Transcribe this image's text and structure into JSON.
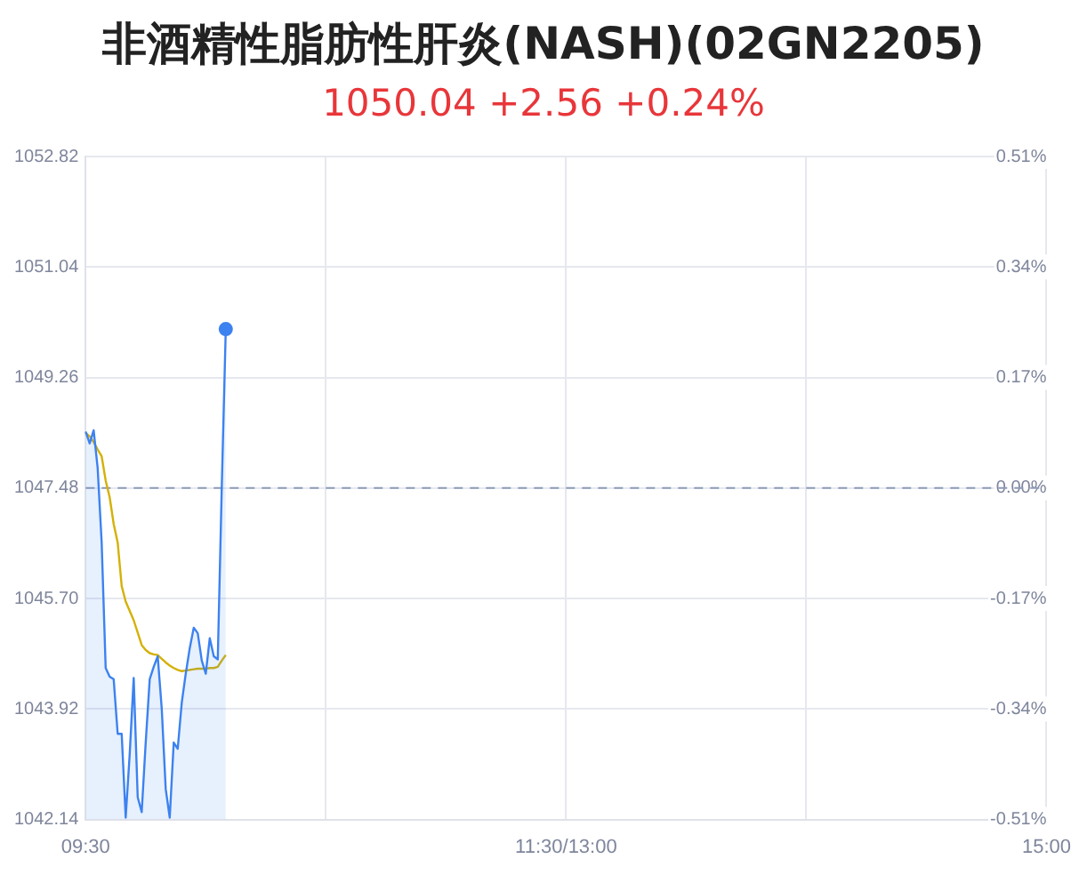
{
  "chart_data": {
    "type": "line",
    "title": "非酒精性脂肪性肝炎(NASH)(02GN2205)",
    "subtitle": "1050.04 +2.56 +0.24%",
    "categories": [
      "09:30",
      null,
      null,
      null,
      null,
      null,
      null,
      null,
      null,
      null,
      null,
      null,
      null,
      null,
      null,
      null,
      null,
      null,
      null,
      null,
      null,
      null,
      null,
      null,
      null,
      null,
      null,
      null,
      null,
      null,
      null,
      null,
      null,
      null,
      null,
      null,
      null,
      null,
      null,
      null,
      null,
      null,
      null,
      null,
      null,
      null,
      null,
      null,
      null,
      null,
      null,
      null,
      null,
      null,
      null,
      null,
      null,
      null,
      null,
      null,
      null,
      null,
      null,
      null,
      null,
      null,
      null,
      null,
      null,
      null,
      null,
      null,
      null,
      null,
      null,
      null,
      null,
      null,
      null,
      null,
      null,
      null,
      null,
      null,
      null,
      null,
      null,
      null,
      null,
      null,
      null,
      null,
      null,
      null,
      null,
      null,
      null,
      null,
      null,
      null,
      null,
      null,
      null,
      null,
      null,
      null,
      null,
      null,
      null,
      null,
      null,
      null,
      null,
      null,
      null,
      null,
      null,
      null,
      null,
      null,
      "11:30/13:00",
      null,
      null,
      null,
      null,
      null,
      null,
      null,
      null,
      null,
      null,
      null,
      null,
      null,
      null,
      null,
      null,
      null,
      null,
      null,
      null,
      null,
      null,
      null,
      null,
      null,
      null,
      null,
      null,
      null,
      null,
      null,
      null,
      null,
      null,
      null,
      null,
      null,
      null,
      null,
      null,
      null,
      null,
      null,
      null,
      null,
      null,
      null,
      null,
      null,
      null,
      null,
      null,
      null,
      null,
      null,
      null,
      null,
      null,
      null,
      null,
      null,
      null,
      null,
      null,
      null,
      null,
      null,
      null,
      null,
      null,
      null,
      null,
      null,
      null,
      null,
      null,
      null,
      null,
      null,
      null,
      null,
      null,
      null,
      null,
      null,
      null,
      null,
      null,
      null,
      null,
      null,
      null,
      null,
      null,
      null,
      null,
      null,
      null,
      null,
      null,
      null,
      null,
      null,
      null,
      null,
      null,
      null,
      null,
      null,
      null,
      null,
      null,
      null,
      null,
      null,
      null,
      null,
      null,
      null,
      "15:00"
    ],
    "ylim": [
      1042.14,
      1052.82
    ],
    "yticks": [
      {
        "value": 1042.14,
        "label": "1042.14"
      },
      {
        "value": 1043.92,
        "label": "1043.92"
      },
      {
        "value": 1045.7,
        "label": "1045.70"
      },
      {
        "value": 1047.48,
        "label": "1047.48"
      },
      {
        "value": 1049.26,
        "label": "1049.26"
      },
      {
        "value": 1051.04,
        "label": "1051.04"
      },
      {
        "value": 1052.82,
        "label": "1052.82"
      }
    ],
    "y2lim": [
      -0.51,
      0.51
    ],
    "y2ticks": [
      {
        "value": -0.51,
        "label": "-0.51%"
      },
      {
        "value": -0.34,
        "label": "-0.34%"
      },
      {
        "value": -0.17,
        "label": "-0.17%"
      },
      {
        "value": 0,
        "label": "0.00%"
      },
      {
        "value": 0.17,
        "label": "0.17%"
      },
      {
        "value": 0.34,
        "label": "0.34%"
      },
      {
        "value": 0.51,
        "label": "0.51%"
      }
    ],
    "grid": true,
    "legend": false,
    "ref_lines": [
      {
        "axis": "y",
        "value": 1047.48,
        "color": "#8e9ab8",
        "line_style": "dashed"
      }
    ],
    "series": [
      {
        "type": "area",
        "color": "#3c82f0",
        "values": [
          1048.39,
          1048.2,
          1048.41,
          1047.8,
          1046.6,
          1044.58,
          1044.44,
          1044.4,
          1043.52,
          1043.52,
          1042.17,
          1043.19,
          1044.42,
          1042.5,
          1042.26,
          1043.38,
          1044.4,
          1044.6,
          1044.77,
          1043.93,
          1042.63,
          1042.17,
          1043.38,
          1043.28,
          1044.02,
          1044.49,
          1044.9,
          1045.23,
          1045.14,
          1044.7,
          1044.49,
          1045.06,
          1044.77,
          1044.72,
          1047.5,
          1050.04,
          null,
          null,
          null,
          null,
          null,
          null,
          null,
          null,
          null,
          null,
          null,
          null,
          null,
          null,
          null,
          null,
          null,
          null,
          null,
          null,
          null,
          null,
          null,
          null,
          null,
          null,
          null,
          null,
          null,
          null,
          null,
          null,
          null,
          null,
          null,
          null,
          null,
          null,
          null,
          null,
          null,
          null,
          null,
          null,
          null,
          null,
          null,
          null,
          null,
          null,
          null,
          null,
          null,
          null,
          null,
          null,
          null,
          null,
          null,
          null,
          null,
          null,
          null,
          null,
          null,
          null,
          null,
          null,
          null,
          null,
          null,
          null,
          null,
          null,
          null,
          null,
          null,
          null,
          null,
          null,
          null,
          null,
          null,
          null,
          null,
          null,
          null,
          null,
          null,
          null,
          null,
          null,
          null,
          null,
          null,
          null,
          null,
          null,
          null,
          null,
          null,
          null,
          null,
          null,
          null,
          null,
          null,
          null,
          null,
          null,
          null,
          null,
          null,
          null,
          null,
          null,
          null,
          null,
          null,
          null,
          null,
          null,
          null,
          null,
          null,
          null,
          null,
          null,
          null,
          null,
          null,
          null,
          null,
          null,
          null,
          null,
          null,
          null,
          null,
          null,
          null,
          null,
          null,
          null,
          null,
          null,
          null,
          null,
          null,
          null,
          null,
          null,
          null,
          null,
          null,
          null,
          null,
          null,
          null,
          null,
          null,
          null,
          null,
          null,
          null,
          null,
          null,
          null,
          null,
          null,
          null,
          null,
          null,
          null,
          null,
          null,
          null,
          null,
          null,
          null,
          null,
          null,
          null,
          null,
          null,
          null,
          null,
          null,
          null,
          null,
          null,
          null,
          null,
          null,
          null,
          null,
          null,
          null,
          null,
          null,
          null,
          null,
          null,
          null,
          null
        ]
      },
      {
        "type": "line",
        "color": "#d4b106",
        "values": [
          1048.37,
          1048.31,
          1048.22,
          1048.1,
          1047.99,
          1047.6,
          1047.33,
          1046.9,
          1046.6,
          1045.9,
          1045.65,
          1045.5,
          1045.35,
          1045.15,
          1044.95,
          1044.87,
          1044.82,
          1044.8,
          1044.79,
          1044.73,
          1044.67,
          1044.62,
          1044.58,
          1044.55,
          1044.53,
          1044.54,
          1044.55,
          1044.56,
          1044.57,
          1044.57,
          1044.57,
          1044.58,
          1044.58,
          1044.6,
          1044.7,
          1044.79,
          null,
          null,
          null,
          null,
          null,
          null,
          null,
          null,
          null,
          null,
          null,
          null,
          null,
          null,
          null,
          null,
          null,
          null,
          null,
          null,
          null,
          null,
          null,
          null,
          null,
          null,
          null,
          null,
          null,
          null,
          null,
          null,
          null,
          null,
          null,
          null,
          null,
          null,
          null,
          null,
          null,
          null,
          null,
          null,
          null,
          null,
          null,
          null,
          null,
          null,
          null,
          null,
          null,
          null,
          null,
          null,
          null,
          null,
          null,
          null,
          null,
          null,
          null,
          null,
          null,
          null,
          null,
          null,
          null,
          null,
          null,
          null,
          null,
          null,
          null,
          null,
          null,
          null,
          null,
          null,
          null,
          null,
          null,
          null,
          null,
          null,
          null,
          null,
          null,
          null,
          null,
          null,
          null,
          null,
          null,
          null,
          null,
          null,
          null,
          null,
          null,
          null,
          null,
          null,
          null,
          null,
          null,
          null,
          null,
          null,
          null,
          null,
          null,
          null,
          null,
          null,
          null,
          null,
          null,
          null,
          null,
          null,
          null,
          null,
          null,
          null,
          null,
          null,
          null,
          null,
          null,
          null,
          null,
          null,
          null,
          null,
          null,
          null,
          null,
          null,
          null,
          null,
          null,
          null,
          null,
          null,
          null,
          null,
          null,
          null,
          null,
          null,
          null,
          null,
          null,
          null,
          null,
          null,
          null,
          null,
          null,
          null,
          null,
          null,
          null,
          null,
          null,
          null,
          null,
          null,
          null,
          null,
          null,
          null,
          null,
          null,
          null,
          null,
          null,
          null,
          null,
          null,
          null,
          null,
          null,
          null,
          null,
          null,
          null,
          null,
          null,
          null,
          null,
          null,
          null,
          null,
          null,
          null,
          null,
          null,
          null,
          null,
          null,
          null,
          null
        ]
      }
    ]
  }
}
